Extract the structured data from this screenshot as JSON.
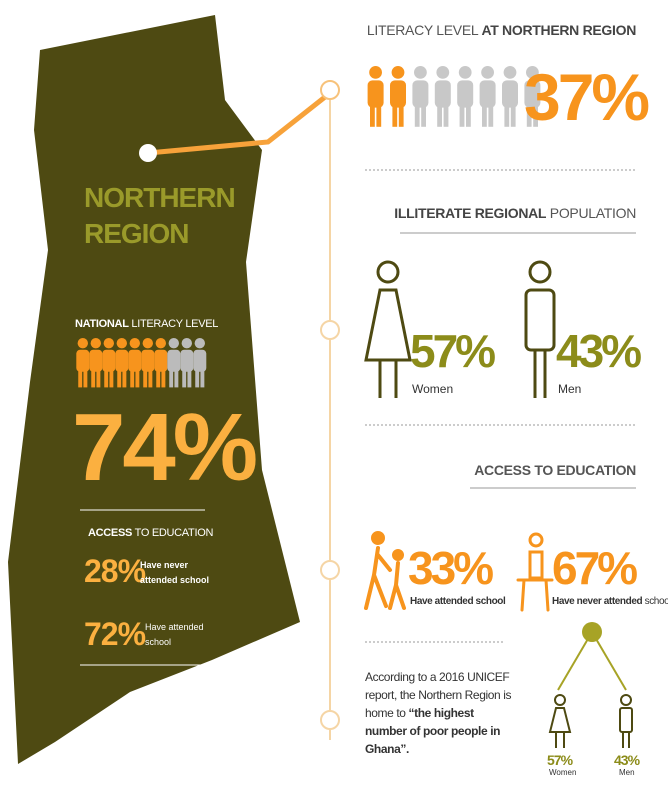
{
  "map": {
    "region": "NORTHERN REGION",
    "national": {
      "label_bold": "NATIONAL",
      "label_light": "LITERACY LEVEL",
      "value": "74%"
    },
    "access": {
      "label_bold": "ACCESS",
      "label_light": "TO EDUCATION",
      "items": [
        {
          "value": "28%",
          "label": "Have never attended school"
        },
        {
          "value": "72%",
          "label": "Have attended school"
        }
      ]
    }
  },
  "northern_literacy": {
    "title_light": "LITERACY LEVEL",
    "title_bold": "AT NORTHERN REGION",
    "value": "37%"
  },
  "illiterate": {
    "title_bold": "ILLITERATE REGIONAL",
    "title_light": "POPULATION",
    "items": [
      {
        "value": "57%",
        "label": "Women"
      },
      {
        "value": "43%",
        "label": "Men"
      }
    ]
  },
  "access": {
    "title": "ACCESS TO EDUCATION",
    "items": [
      {
        "value": "33%",
        "label": "Have attended school"
      },
      {
        "value": "67%",
        "label_bold": "Have never attended",
        "label_light": "school"
      }
    ]
  },
  "unicef": {
    "text": "According to a 2016 UNICEF report, the Northern Region is home to",
    "bold": "“the highest number of poor people in Ghana”.",
    "tree": [
      {
        "value": "57%",
        "label": "Women"
      },
      {
        "value": "43%",
        "label": "Men"
      }
    ]
  }
}
